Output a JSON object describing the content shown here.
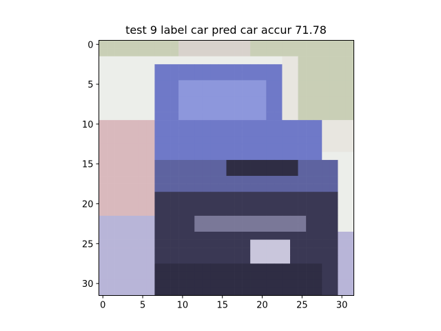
{
  "chart_data": {
    "type": "heatmap",
    "title": "test 9 label car pred car accur 71.78",
    "xlabel": "",
    "ylabel": "",
    "xlim": [
      -0.5,
      31.5
    ],
    "ylim": [
      31.5,
      -0.5
    ],
    "xticks": [
      0,
      5,
      10,
      15,
      20,
      25,
      30
    ],
    "yticks": [
      0,
      5,
      10,
      15,
      20,
      25,
      30
    ],
    "grid": false,
    "image_size": [
      32,
      32
    ],
    "image_description_regions": [
      {
        "rows": [
          0,
          31
        ],
        "cols": [
          0,
          31
        ],
        "color": "#e9e8e6"
      }
    ],
    "palette": {
      "sky": "#eceeea",
      "foliage": "#c9cfb6",
      "car_body": "#6f79c8",
      "car_roof_light": "#8d97dc",
      "car_dark": "#2f2d44",
      "grille": "#3a3854",
      "lower_left": "#b8b5d8",
      "pink_left": "#d9b9bd"
    }
  }
}
